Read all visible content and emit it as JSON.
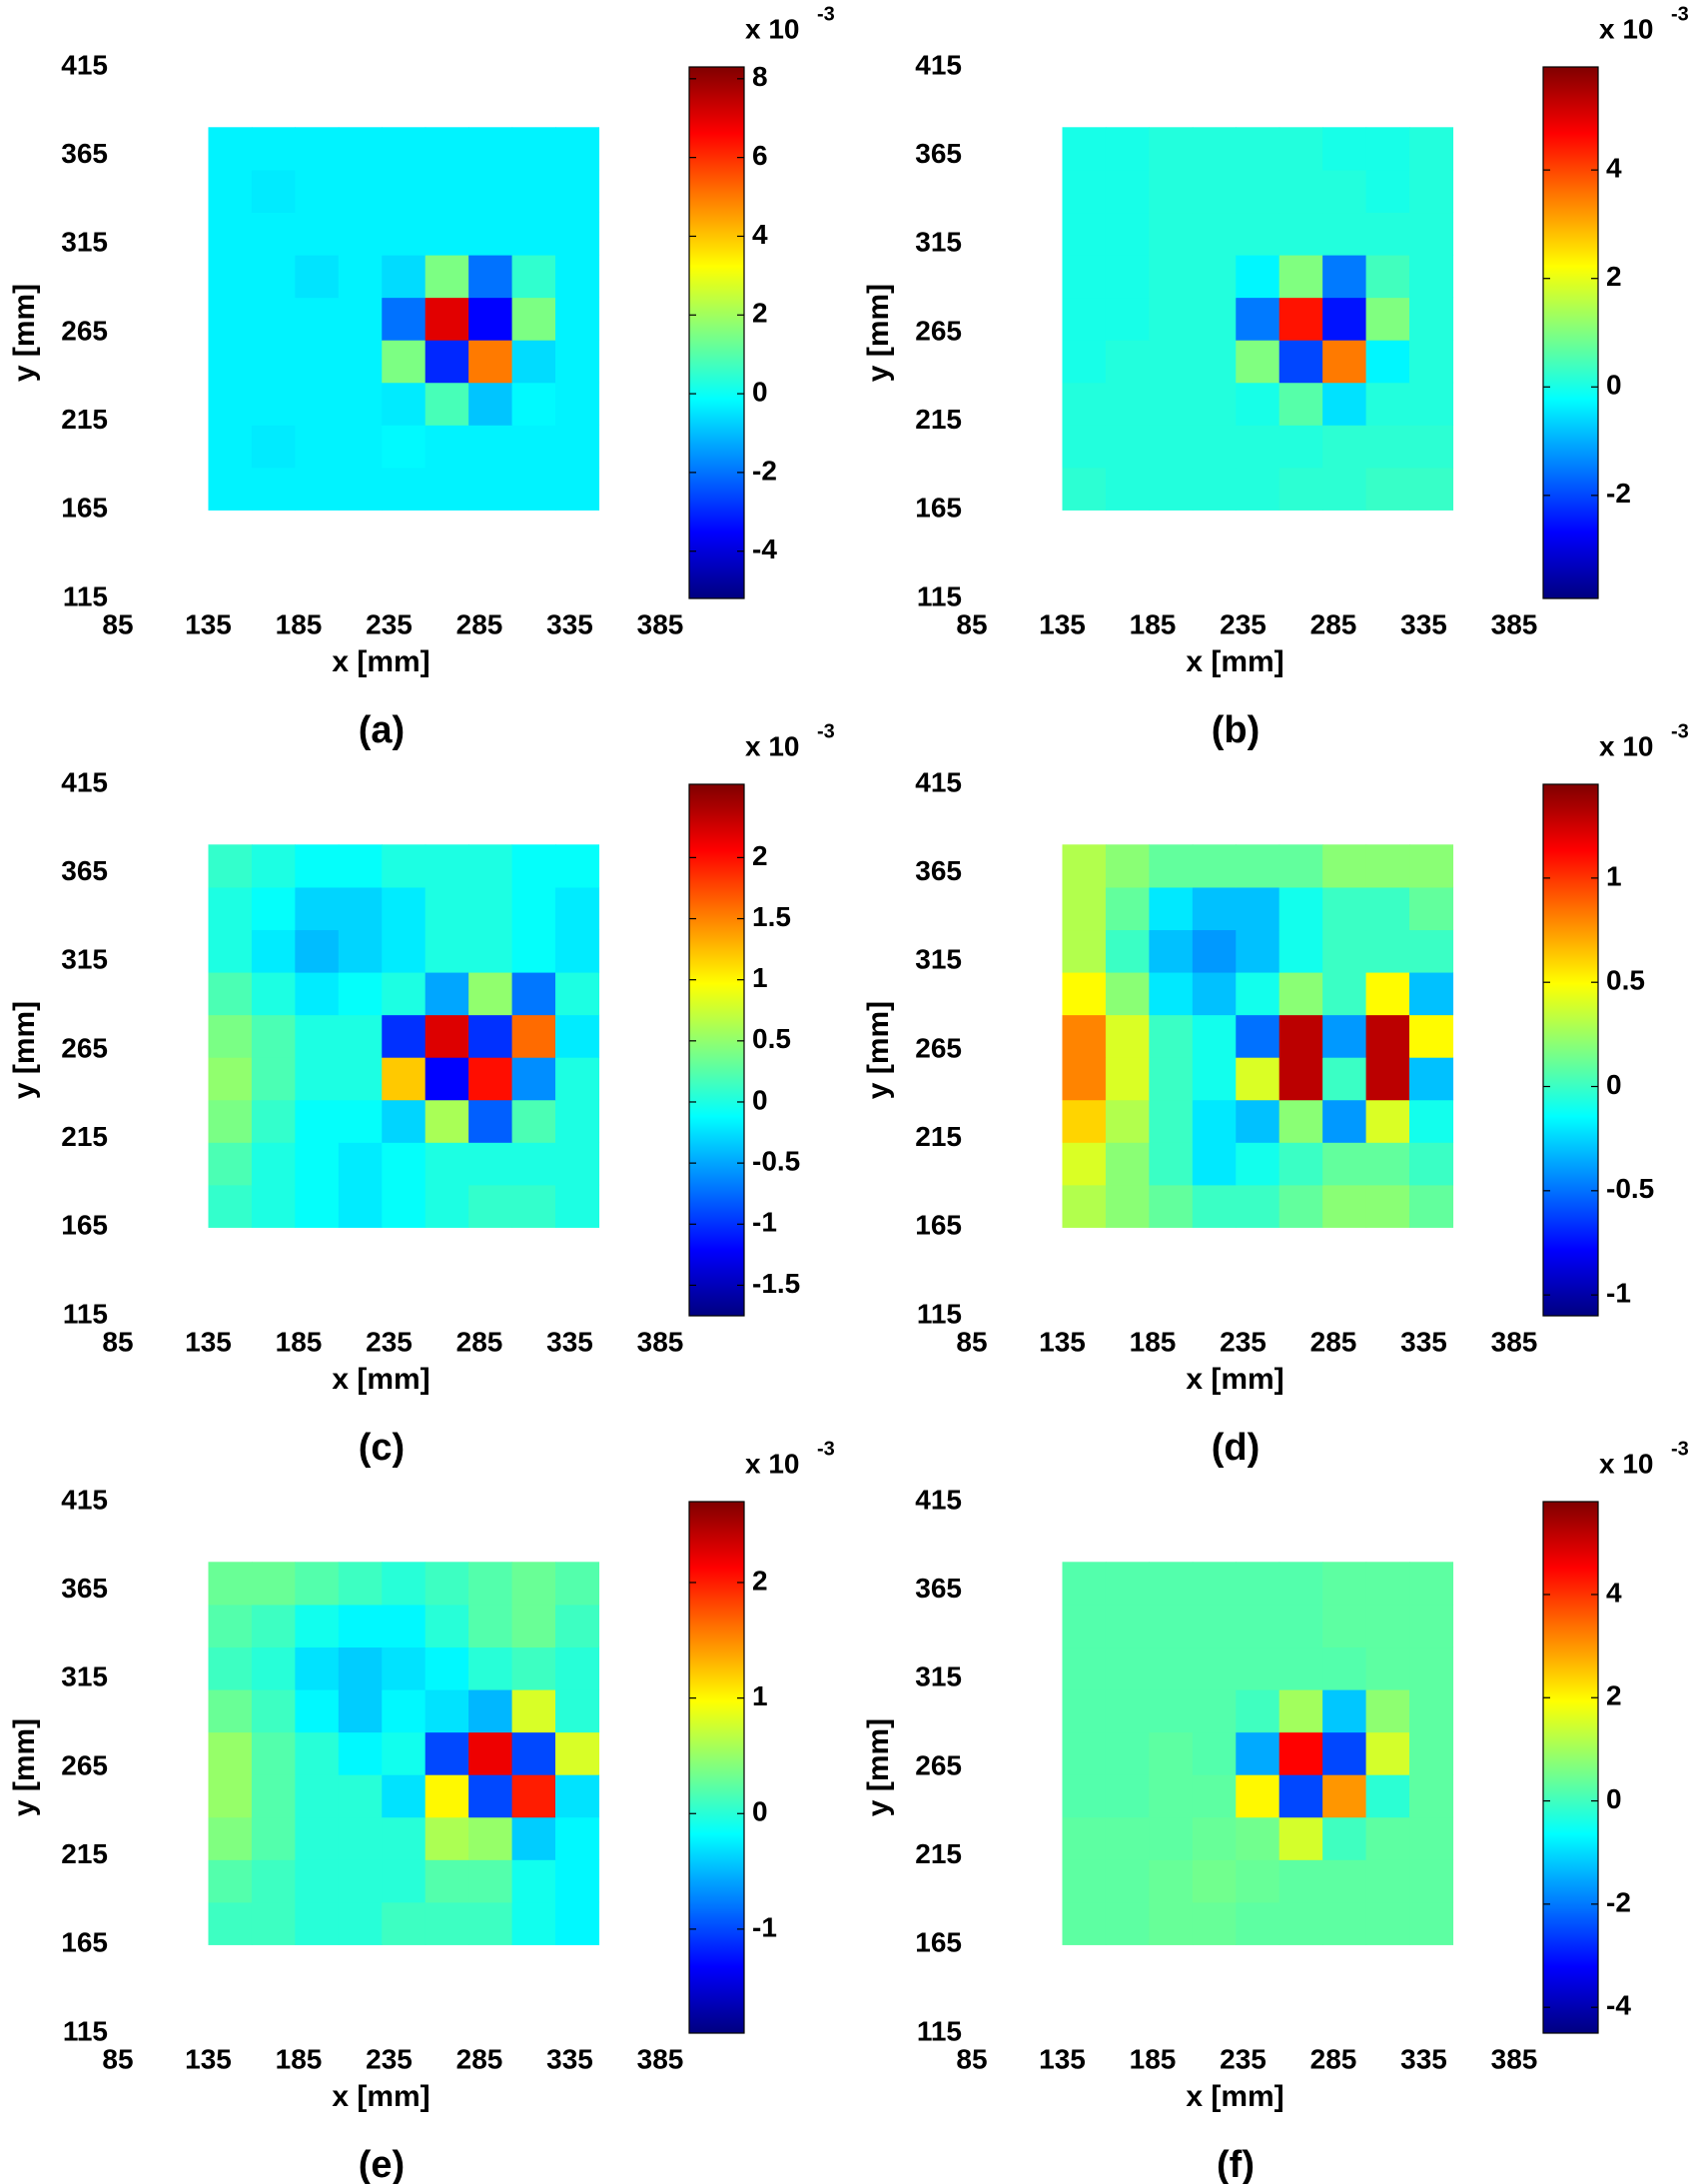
{
  "chart_data": [
    {
      "type": "heatmap",
      "title": "(a)",
      "xlabel": "x [mm]",
      "ylabel": "y [mm]",
      "xlim": [
        85,
        385
      ],
      "ylim": [
        115,
        415
      ],
      "xticks": [
        85,
        135,
        185,
        235,
        285,
        335,
        385
      ],
      "yticks": [
        115,
        165,
        215,
        265,
        315,
        365,
        415
      ],
      "colormap": "jet",
      "colorbar_label": "x 10",
      "colorbar_exponent": "-3",
      "clim": [
        -5.2,
        8.3
      ],
      "cticks": [
        -4,
        -2,
        0,
        2,
        4,
        6,
        8
      ],
      "x": [
        147,
        171,
        195,
        219,
        243,
        267,
        291,
        315,
        339
      ],
      "y": [
        177,
        201,
        225,
        249,
        273,
        297,
        321,
        345,
        369
      ],
      "z": [
        [
          -0.3,
          -0.3,
          -0.3,
          -0.3,
          -0.3,
          -0.3,
          -0.3,
          -0.3,
          -0.3
        ],
        [
          -0.3,
          -0.4,
          -0.3,
          -0.3,
          -0.2,
          -0.3,
          -0.3,
          -0.3,
          -0.3
        ],
        [
          -0.3,
          -0.3,
          -0.3,
          -0.3,
          -0.4,
          0.8,
          -0.9,
          -0.2,
          -0.3
        ],
        [
          -0.3,
          -0.3,
          -0.3,
          -0.3,
          1.5,
          -3,
          5,
          -0.6,
          -0.3
        ],
        [
          -0.3,
          -0.3,
          -0.3,
          -0.3,
          -2,
          7,
          -3.5,
          1.5,
          -0.3
        ],
        [
          -0.3,
          -0.3,
          -0.5,
          -0.3,
          -0.6,
          1.5,
          -2,
          0.5,
          -0.3
        ],
        [
          -0.3,
          -0.3,
          -0.3,
          -0.3,
          -0.3,
          -0.3,
          -0.3,
          -0.3,
          -0.3
        ],
        [
          -0.3,
          -0.4,
          -0.3,
          -0.3,
          -0.3,
          -0.3,
          -0.3,
          -0.3,
          -0.3
        ],
        [
          -0.3,
          -0.3,
          -0.3,
          -0.3,
          -0.3,
          -0.3,
          -0.3,
          -0.3,
          -0.3
        ]
      ]
    },
    {
      "type": "heatmap",
      "title": "(b)",
      "xlabel": "x [mm]",
      "ylabel": "y [mm]",
      "xlim": [
        85,
        385
      ],
      "ylim": [
        115,
        415
      ],
      "xticks": [
        85,
        135,
        185,
        235,
        285,
        335,
        385
      ],
      "yticks": [
        115,
        165,
        215,
        265,
        315,
        365,
        415
      ],
      "colormap": "jet",
      "colorbar_label": "x 10",
      "colorbar_exponent": "-3",
      "clim": [
        -3.9,
        5.9
      ],
      "cticks": [
        -2,
        0,
        2,
        4
      ],
      "x": [
        147,
        171,
        195,
        219,
        243,
        267,
        291,
        315,
        339
      ],
      "y": [
        177,
        201,
        225,
        249,
        273,
        297,
        321,
        345,
        369
      ],
      "z": [
        [
          0.2,
          0.1,
          0.1,
          0.1,
          0.1,
          0.2,
          0.2,
          0.3,
          0.3
        ],
        [
          0.1,
          0.1,
          0.1,
          0.1,
          0.1,
          0.1,
          0.2,
          0.2,
          0.2
        ],
        [
          0.1,
          0.1,
          0.1,
          0.1,
          0,
          0.6,
          -0.5,
          0.1,
          0.1
        ],
        [
          0,
          0.1,
          0.1,
          0.1,
          1,
          -2,
          3.5,
          -0.3,
          0.1
        ],
        [
          0,
          0,
          0.1,
          0.1,
          -1.5,
          4.5,
          -2.5,
          1,
          0.1
        ],
        [
          0,
          0,
          0.1,
          0.1,
          -0.3,
          1,
          -1.5,
          0.4,
          0.1
        ],
        [
          0,
          0,
          0.1,
          0.1,
          0.1,
          0.1,
          0.1,
          0.1,
          0.1
        ],
        [
          0,
          0,
          0.1,
          0.1,
          0.1,
          0.1,
          0.1,
          0,
          0.1
        ],
        [
          0,
          0,
          0.1,
          0.1,
          0.1,
          0.1,
          0,
          0,
          0.1
        ]
      ]
    },
    {
      "type": "heatmap",
      "title": "(c)",
      "xlabel": "x [mm]",
      "ylabel": "y [mm]",
      "xlim": [
        85,
        385
      ],
      "ylim": [
        115,
        415
      ],
      "xticks": [
        85,
        135,
        185,
        235,
        285,
        335,
        385
      ],
      "yticks": [
        115,
        165,
        215,
        265,
        315,
        365,
        415
      ],
      "colormap": "jet",
      "colorbar_label": "x 10",
      "colorbar_exponent": "-3",
      "clim": [
        -1.75,
        2.6
      ],
      "cticks": [
        -1.5,
        -1,
        -0.5,
        0,
        0.5,
        1,
        1.5,
        2
      ],
      "x": [
        147,
        171,
        195,
        219,
        243,
        267,
        291,
        315,
        339
      ],
      "y": [
        177,
        201,
        225,
        249,
        273,
        297,
        321,
        345,
        369
      ],
      "z": [
        [
          0.1,
          0,
          -0.1,
          -0.2,
          -0.1,
          0,
          0.1,
          0.1,
          0
        ],
        [
          0.2,
          0,
          -0.1,
          -0.2,
          -0.1,
          0,
          0,
          0,
          0
        ],
        [
          0.4,
          0.1,
          -0.1,
          -0.1,
          -0.3,
          0.6,
          -0.8,
          0.2,
          0
        ],
        [
          0.5,
          0.2,
          0,
          0,
          1.2,
          -1.2,
          2,
          -0.6,
          0
        ],
        [
          0.4,
          0.2,
          0,
          0,
          -1,
          2.2,
          -1,
          1.6,
          -0.2
        ],
        [
          0.2,
          0,
          -0.2,
          -0.1,
          0,
          -0.5,
          0.5,
          -0.7,
          0
        ],
        [
          0,
          -0.2,
          -0.4,
          -0.3,
          -0.2,
          0,
          0,
          -0.1,
          -0.2
        ],
        [
          0,
          -0.1,
          -0.3,
          -0.3,
          -0.2,
          0,
          0,
          -0.1,
          -0.2
        ],
        [
          0.1,
          0,
          -0.1,
          -0.1,
          0,
          0,
          0,
          -0.1,
          -0.1
        ]
      ]
    },
    {
      "type": "heatmap",
      "title": "(d)",
      "xlabel": "x [mm]",
      "ylabel": "y [mm]",
      "xlim": [
        85,
        385
      ],
      "ylim": [
        115,
        415
      ],
      "xticks": [
        85,
        135,
        185,
        235,
        285,
        335,
        385
      ],
      "yticks": [
        115,
        165,
        215,
        265,
        315,
        365,
        415
      ],
      "colormap": "jet",
      "colorbar_label": "x 10",
      "colorbar_exponent": "-3",
      "clim": [
        -1.1,
        1.45
      ],
      "cticks": [
        -1,
        -0.5,
        0,
        0.5,
        1
      ],
      "x": [
        147,
        171,
        195,
        219,
        243,
        267,
        291,
        315,
        339
      ],
      "y": [
        177,
        201,
        225,
        249,
        273,
        297,
        321,
        345,
        369
      ],
      "z": [
        [
          0.3,
          0.2,
          0.1,
          0,
          0,
          0.1,
          0.2,
          0.2,
          0.1
        ],
        [
          0.4,
          0.2,
          0,
          -0.2,
          -0.1,
          0,
          0.1,
          0.1,
          0
        ],
        [
          0.6,
          0.3,
          0,
          -0.2,
          -0.3,
          0.2,
          -0.4,
          0.4,
          -0.1
        ],
        [
          0.8,
          0.4,
          0,
          -0.1,
          0.4,
          1.3,
          0,
          1.3,
          -0.3
        ],
        [
          0.8,
          0.4,
          0,
          -0.1,
          -0.5,
          1.3,
          -0.4,
          1.3,
          0.5
        ],
        [
          0.5,
          0.2,
          -0.2,
          -0.3,
          -0.1,
          0.2,
          0,
          0.5,
          -0.3
        ],
        [
          0.3,
          0,
          -0.3,
          -0.4,
          -0.3,
          -0.1,
          0,
          0,
          0
        ],
        [
          0.3,
          0.1,
          -0.2,
          -0.3,
          -0.3,
          -0.1,
          0,
          0,
          0.1
        ],
        [
          0.3,
          0.2,
          0.1,
          0.1,
          0.1,
          0.1,
          0.2,
          0.2,
          0.2
        ]
      ]
    },
    {
      "type": "heatmap",
      "title": "(e)",
      "xlabel": "x [mm]",
      "ylabel": "y [mm]",
      "xlim": [
        85,
        385
      ],
      "ylim": [
        115,
        415
      ],
      "xticks": [
        85,
        135,
        185,
        235,
        285,
        335,
        385
      ],
      "yticks": [
        115,
        165,
        215,
        265,
        315,
        365,
        415
      ],
      "colormap": "jet",
      "colorbar_label": "x 10",
      "colorbar_exponent": "-3",
      "clim": [
        -1.9,
        2.7
      ],
      "cticks": [
        -1,
        0,
        1,
        2
      ],
      "x": [
        147,
        171,
        195,
        219,
        243,
        267,
        291,
        315,
        339
      ],
      "y": [
        177,
        201,
        225,
        249,
        273,
        297,
        321,
        345,
        369
      ],
      "z": [
        [
          0.1,
          0.1,
          0,
          0,
          0.1,
          0.1,
          0.1,
          -0.1,
          -0.2
        ],
        [
          0.2,
          0.1,
          0,
          0,
          0,
          0.2,
          0.2,
          -0.1,
          -0.2
        ],
        [
          0.4,
          0.2,
          0,
          0,
          0,
          0.6,
          0.5,
          -0.4,
          -0.2
        ],
        [
          0.5,
          0.2,
          0,
          0,
          -0.3,
          1,
          -1,
          2,
          -0.3
        ],
        [
          0.5,
          0.2,
          0,
          -0.2,
          -0.1,
          -1,
          2.2,
          -1,
          0.8
        ],
        [
          0.3,
          0.1,
          -0.2,
          -0.4,
          -0.2,
          -0.3,
          -0.5,
          0.8,
          0
        ],
        [
          0.1,
          0,
          -0.3,
          -0.4,
          -0.3,
          -0.2,
          0,
          0.1,
          0
        ],
        [
          0.2,
          0.1,
          -0.1,
          -0.2,
          -0.2,
          0,
          0.2,
          0.3,
          0.1
        ],
        [
          0.3,
          0.3,
          0.2,
          0.1,
          0,
          0.1,
          0.2,
          0.3,
          0.2
        ]
      ]
    },
    {
      "type": "heatmap",
      "title": "(f)",
      "xlabel": "x [mm]",
      "ylabel": "y [mm]",
      "xlim": [
        85,
        385
      ],
      "ylim": [
        115,
        415
      ],
      "xticks": [
        85,
        135,
        185,
        235,
        285,
        335,
        385
      ],
      "yticks": [
        115,
        165,
        215,
        265,
        315,
        365,
        415
      ],
      "colormap": "jet",
      "colorbar_label": "x 10",
      "colorbar_exponent": "-3",
      "clim": [
        -4.5,
        5.8
      ],
      "cticks": [
        -4,
        -2,
        0,
        2,
        4
      ],
      "x": [
        147,
        171,
        195,
        219,
        243,
        267,
        291,
        315,
        339
      ],
      "y": [
        177,
        201,
        225,
        249,
        273,
        297,
        321,
        345,
        369
      ],
      "z": [
        [
          0.3,
          0.3,
          0.4,
          0.4,
          0.3,
          0.3,
          0.3,
          0.3,
          0.3
        ],
        [
          0.3,
          0.3,
          0.4,
          0.5,
          0.4,
          0.3,
          0.3,
          0.3,
          0.3
        ],
        [
          0.3,
          0.3,
          0.3,
          0.4,
          0.5,
          1.5,
          0,
          0.3,
          0.3
        ],
        [
          0.2,
          0.2,
          0.3,
          0.3,
          2,
          -2.5,
          3,
          -0.2,
          0.3
        ],
        [
          0.2,
          0.2,
          0.3,
          0.2,
          -1.5,
          4.5,
          -2.5,
          1.5,
          0.3
        ],
        [
          0.2,
          0.2,
          0.2,
          0.2,
          0,
          1,
          -1.2,
          0.8,
          0.3
        ],
        [
          0.2,
          0.2,
          0.2,
          0.2,
          0.2,
          0.2,
          0.2,
          0.3,
          0.3
        ],
        [
          0.2,
          0.2,
          0.2,
          0.2,
          0.2,
          0.2,
          0.3,
          0.3,
          0.3
        ],
        [
          0.2,
          0.2,
          0.2,
          0.2,
          0.2,
          0.2,
          0.3,
          0.3,
          0.3
        ]
      ]
    }
  ]
}
